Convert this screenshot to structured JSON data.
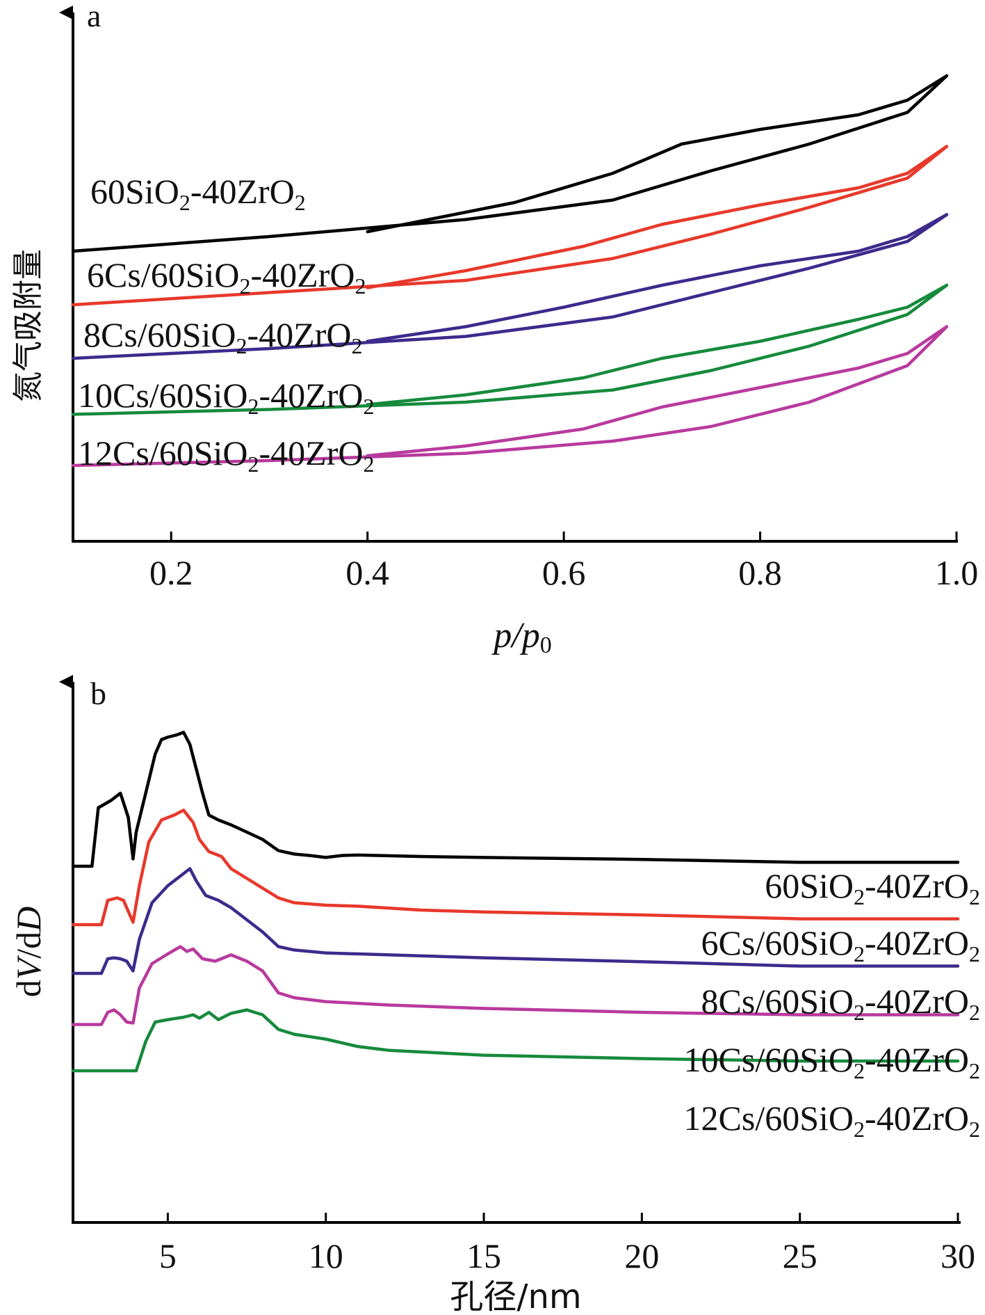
{
  "chart_data": [
    {
      "panel": "a",
      "type": "line",
      "xlabel": "p/p0",
      "xlabel_main": "p/p",
      "xlabel_sub": "0",
      "ylabel": "氮气吸附量",
      "xlim": [
        0.1,
        1.0
      ],
      "xticks": [
        "0.2",
        "0.4",
        "0.6",
        "0.8",
        "1.0"
      ],
      "xtick_values": [
        0.2,
        0.4,
        0.6,
        0.8,
        1.0
      ],
      "y_units": "relative (no y tick labels)",
      "ylim": [
        0,
        10
      ],
      "series": [
        {
          "label_main": "60SiO",
          "label_mid": "-40ZrO",
          "sub": "2",
          "color": "#000000",
          "adsorption": [
            [
              0.1,
              5.7
            ],
            [
              0.3,
              6.0
            ],
            [
              0.5,
              6.35
            ],
            [
              0.65,
              6.75
            ],
            [
              0.75,
              7.35
            ],
            [
              0.85,
              7.9
            ],
            [
              0.95,
              8.55
            ],
            [
              0.99,
              9.3
            ]
          ],
          "desorption": [
            [
              0.99,
              9.3
            ],
            [
              0.95,
              8.8
            ],
            [
              0.9,
              8.5
            ],
            [
              0.8,
              8.2
            ],
            [
              0.72,
              7.9
            ],
            [
              0.65,
              7.3
            ],
            [
              0.55,
              6.7
            ],
            [
              0.4,
              6.1
            ]
          ]
        },
        {
          "label_main": "6Cs/60SiO",
          "label_mid": "-40ZrO",
          "sub": "2",
          "color": "#e8382b",
          "adsorption": [
            [
              0.1,
              4.6
            ],
            [
              0.3,
              4.85
            ],
            [
              0.5,
              5.1
            ],
            [
              0.65,
              5.55
            ],
            [
              0.75,
              6.05
            ],
            [
              0.85,
              6.6
            ],
            [
              0.95,
              7.2
            ],
            [
              0.99,
              7.85
            ]
          ],
          "desorption": [
            [
              0.99,
              7.85
            ],
            [
              0.95,
              7.3
            ],
            [
              0.9,
              7.0
            ],
            [
              0.8,
              6.65
            ],
            [
              0.7,
              6.25
            ],
            [
              0.62,
              5.8
            ],
            [
              0.5,
              5.3
            ],
            [
              0.4,
              4.95
            ]
          ]
        },
        {
          "label_main": "8Cs/60SiO",
          "label_mid": "-40ZrO",
          "sub": "2",
          "color": "#3d2a8c",
          "adsorption": [
            [
              0.1,
              3.5
            ],
            [
              0.3,
              3.7
            ],
            [
              0.5,
              3.95
            ],
            [
              0.65,
              4.35
            ],
            [
              0.75,
              4.85
            ],
            [
              0.85,
              5.35
            ],
            [
              0.95,
              5.9
            ],
            [
              0.99,
              6.45
            ]
          ],
          "desorption": [
            [
              0.99,
              6.45
            ],
            [
              0.95,
              6.0
            ],
            [
              0.9,
              5.7
            ],
            [
              0.8,
              5.4
            ],
            [
              0.7,
              5.0
            ],
            [
              0.6,
              4.55
            ],
            [
              0.5,
              4.15
            ],
            [
              0.4,
              3.85
            ]
          ]
        },
        {
          "label_main": "10Cs/60SiO",
          "label_mid": "-40ZrO",
          "sub": "2",
          "color": "#168a3c",
          "adsorption": [
            [
              0.1,
              2.35
            ],
            [
              0.3,
              2.45
            ],
            [
              0.5,
              2.6
            ],
            [
              0.65,
              2.85
            ],
            [
              0.75,
              3.25
            ],
            [
              0.85,
              3.75
            ],
            [
              0.95,
              4.4
            ],
            [
              0.99,
              5.0
            ]
          ],
          "desorption": [
            [
              0.99,
              5.0
            ],
            [
              0.95,
              4.55
            ],
            [
              0.9,
              4.3
            ],
            [
              0.8,
              3.85
            ],
            [
              0.7,
              3.5
            ],
            [
              0.62,
              3.1
            ],
            [
              0.5,
              2.75
            ],
            [
              0.4,
              2.55
            ]
          ]
        },
        {
          "label_main": "12Cs/60SiO",
          "label_mid": "-40ZrO",
          "sub": "2",
          "color": "#b83a9e",
          "adsorption": [
            [
              0.1,
              1.3
            ],
            [
              0.3,
              1.4
            ],
            [
              0.5,
              1.55
            ],
            [
              0.65,
              1.8
            ],
            [
              0.75,
              2.1
            ],
            [
              0.85,
              2.6
            ],
            [
              0.95,
              3.35
            ],
            [
              0.99,
              4.15
            ]
          ],
          "desorption": [
            [
              0.99,
              4.15
            ],
            [
              0.95,
              3.6
            ],
            [
              0.9,
              3.3
            ],
            [
              0.8,
              2.9
            ],
            [
              0.7,
              2.5
            ],
            [
              0.62,
              2.05
            ],
            [
              0.5,
              1.7
            ],
            [
              0.4,
              1.5
            ]
          ]
        }
      ]
    },
    {
      "panel": "b",
      "type": "line",
      "xlabel": "孔径/nm",
      "ylabel": "dV/dD",
      "ylabel_parts": [
        "d",
        "V",
        "/d",
        "D"
      ],
      "xlim": [
        2,
        30
      ],
      "xticks": [
        "5",
        "10",
        "15",
        "20",
        "25",
        "30"
      ],
      "xtick_values": [
        5,
        10,
        15,
        20,
        25,
        30
      ],
      "y_units": "relative (no y tick labels)",
      "ylim": [
        0,
        10
      ],
      "series": [
        {
          "label_main": "60SiO",
          "label_mid": "-40ZrO",
          "sub": "2",
          "color": "#000000",
          "points": [
            [
              2.0,
              6.5
            ],
            [
              2.6,
              6.5
            ],
            [
              2.8,
              7.7
            ],
            [
              3.2,
              7.85
            ],
            [
              3.5,
              8.0
            ],
            [
              3.75,
              7.5
            ],
            [
              3.9,
              6.65
            ],
            [
              4.0,
              7.2
            ],
            [
              4.3,
              8.0
            ],
            [
              4.6,
              8.8
            ],
            [
              4.8,
              9.1
            ],
            [
              5.0,
              9.15
            ],
            [
              5.3,
              9.2
            ],
            [
              5.5,
              9.25
            ],
            [
              5.7,
              9.0
            ],
            [
              5.9,
              8.5
            ],
            [
              6.1,
              8.0
            ],
            [
              6.3,
              7.55
            ],
            [
              6.6,
              7.45
            ],
            [
              7.0,
              7.35
            ],
            [
              7.5,
              7.2
            ],
            [
              8.0,
              7.05
            ],
            [
              8.5,
              6.82
            ],
            [
              9.0,
              6.75
            ],
            [
              9.5,
              6.72
            ],
            [
              10.0,
              6.68
            ],
            [
              10.5,
              6.72
            ],
            [
              11.0,
              6.73
            ],
            [
              13,
              6.7
            ],
            [
              15,
              6.68
            ],
            [
              20,
              6.64
            ],
            [
              25,
              6.58
            ],
            [
              30,
              6.58
            ]
          ]
        },
        {
          "label_main": "6Cs/60SiO",
          "label_mid": "-40ZrO",
          "sub": "2",
          "color": "#e8382b",
          "points": [
            [
              2.0,
              5.3
            ],
            [
              2.9,
              5.3
            ],
            [
              3.1,
              5.8
            ],
            [
              3.4,
              5.85
            ],
            [
              3.6,
              5.8
            ],
            [
              3.8,
              5.5
            ],
            [
              3.9,
              5.35
            ],
            [
              4.1,
              6.1
            ],
            [
              4.4,
              7.0
            ],
            [
              4.8,
              7.45
            ],
            [
              5.2,
              7.55
            ],
            [
              5.5,
              7.65
            ],
            [
              5.8,
              7.4
            ],
            [
              6.0,
              7.05
            ],
            [
              6.3,
              6.8
            ],
            [
              6.7,
              6.7
            ],
            [
              7.0,
              6.45
            ],
            [
              7.5,
              6.25
            ],
            [
              8.0,
              6.05
            ],
            [
              8.5,
              5.85
            ],
            [
              9.0,
              5.75
            ],
            [
              10.0,
              5.7
            ],
            [
              11.0,
              5.68
            ],
            [
              13,
              5.6
            ],
            [
              15,
              5.56
            ],
            [
              20,
              5.5
            ],
            [
              25,
              5.42
            ],
            [
              30,
              5.42
            ]
          ]
        },
        {
          "label_main": "8Cs/60SiO",
          "label_mid": "-40ZrO",
          "sub": "2",
          "color": "#3d2a8c",
          "points": [
            [
              2.0,
              4.3
            ],
            [
              2.9,
              4.3
            ],
            [
              3.1,
              4.6
            ],
            [
              3.3,
              4.62
            ],
            [
              3.5,
              4.6
            ],
            [
              3.7,
              4.55
            ],
            [
              3.9,
              4.35
            ],
            [
              4.1,
              5.0
            ],
            [
              4.5,
              5.75
            ],
            [
              5.0,
              6.1
            ],
            [
              5.4,
              6.3
            ],
            [
              5.7,
              6.45
            ],
            [
              5.9,
              6.2
            ],
            [
              6.2,
              5.9
            ],
            [
              6.6,
              5.8
            ],
            [
              7.0,
              5.65
            ],
            [
              7.5,
              5.4
            ],
            [
              8.0,
              5.15
            ],
            [
              8.5,
              4.85
            ],
            [
              9.0,
              4.78
            ],
            [
              10.0,
              4.72
            ],
            [
              12.0,
              4.68
            ],
            [
              15,
              4.62
            ],
            [
              20,
              4.54
            ],
            [
              25,
              4.45
            ],
            [
              30,
              4.45
            ]
          ]
        },
        {
          "label_main": "10Cs/60SiO",
          "label_mid": "-40ZrO",
          "sub": "2",
          "color": "#b83a9e",
          "points": [
            [
              2.0,
              3.25
            ],
            [
              2.9,
              3.25
            ],
            [
              3.1,
              3.5
            ],
            [
              3.3,
              3.55
            ],
            [
              3.5,
              3.45
            ],
            [
              3.7,
              3.3
            ],
            [
              3.9,
              3.28
            ],
            [
              4.1,
              4.0
            ],
            [
              4.5,
              4.5
            ],
            [
              5.0,
              4.7
            ],
            [
              5.4,
              4.85
            ],
            [
              5.6,
              4.75
            ],
            [
              5.8,
              4.8
            ],
            [
              6.1,
              4.6
            ],
            [
              6.5,
              4.55
            ],
            [
              7.0,
              4.68
            ],
            [
              7.5,
              4.55
            ],
            [
              8.0,
              4.35
            ],
            [
              8.5,
              3.9
            ],
            [
              9.0,
              3.8
            ],
            [
              10.0,
              3.72
            ],
            [
              12.0,
              3.65
            ],
            [
              15,
              3.58
            ],
            [
              20,
              3.5
            ],
            [
              25,
              3.45
            ],
            [
              30,
              3.45
            ]
          ]
        },
        {
          "label_main": "12Cs/60SiO",
          "label_mid": "-40ZrO",
          "sub": "2",
          "color": "#168a3c",
          "points": [
            [
              2.0,
              2.3
            ],
            [
              4.0,
              2.3
            ],
            [
              4.3,
              2.9
            ],
            [
              4.6,
              3.3
            ],
            [
              5.0,
              3.35
            ],
            [
              5.5,
              3.4
            ],
            [
              5.8,
              3.45
            ],
            [
              6.0,
              3.38
            ],
            [
              6.3,
              3.5
            ],
            [
              6.6,
              3.35
            ],
            [
              7.0,
              3.48
            ],
            [
              7.5,
              3.55
            ],
            [
              8.0,
              3.45
            ],
            [
              8.5,
              3.15
            ],
            [
              9.0,
              3.05
            ],
            [
              10.0,
              2.95
            ],
            [
              11.0,
              2.8
            ],
            [
              12.0,
              2.72
            ],
            [
              15,
              2.62
            ],
            [
              20,
              2.55
            ],
            [
              25,
              2.5
            ],
            [
              30,
              2.5
            ]
          ]
        }
      ]
    }
  ]
}
